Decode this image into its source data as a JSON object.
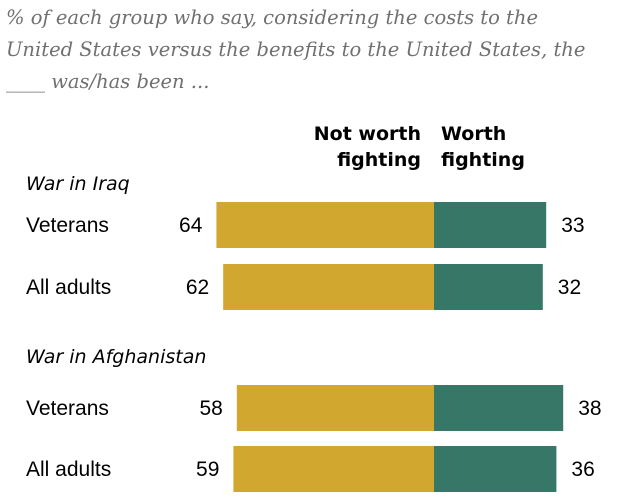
{
  "subtitle": {
    "line1": "% of each group who say, considering the costs to the",
    "line2": "United States versus the benefits to the United States, the",
    "line3": "____ was/has been ..."
  },
  "chart_data": {
    "type": "bar",
    "orientation": "horizontal-diverging",
    "headers": {
      "not_worth_line1": "Not worth",
      "not_worth_line2": "fighting",
      "worth_line1": "Worth",
      "worth_line2": "fighting"
    },
    "colors": {
      "not_worth": "#D1A730",
      "worth": "#377767"
    },
    "groups": [
      {
        "title": "War in Iraq",
        "rows": [
          {
            "label": "Veterans",
            "not_worth": 64,
            "worth": 33
          },
          {
            "label": "All adults",
            "not_worth": 62,
            "worth": 32
          }
        ]
      },
      {
        "title": "War in Afghanistan",
        "rows": [
          {
            "label": "Veterans",
            "not_worth": 58,
            "worth": 38
          },
          {
            "label": "All adults",
            "not_worth": 59,
            "worth": 36
          }
        ]
      }
    ]
  }
}
